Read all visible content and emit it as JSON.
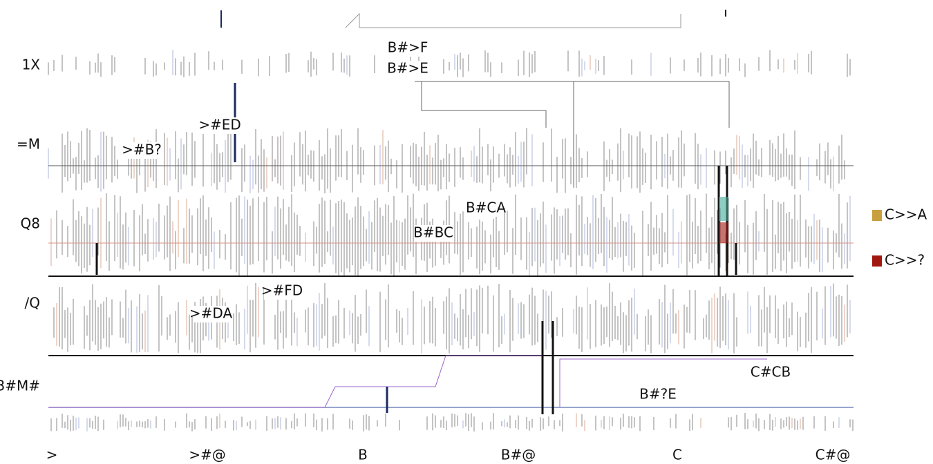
{
  "tracks": [
    "1X",
    "=M",
    "Q8",
    "/Q",
    "3#M#"
  ],
  "x_axis_labels": [
    ">",
    ">#@",
    "B",
    "B#@",
    "C",
    "C#@"
  ],
  "annotations": [
    "B#>F",
    "B#>E",
    ">#ED",
    ">#B?",
    "B#CA",
    "B#BC",
    ">#FD",
    ">#DA",
    "C#CB",
    "B#?E"
  ],
  "legend": [
    {
      "name": "C>>A",
      "color": "#c8a040"
    },
    {
      "name": "C>>?",
      "color": "#a01810"
    }
  ]
}
